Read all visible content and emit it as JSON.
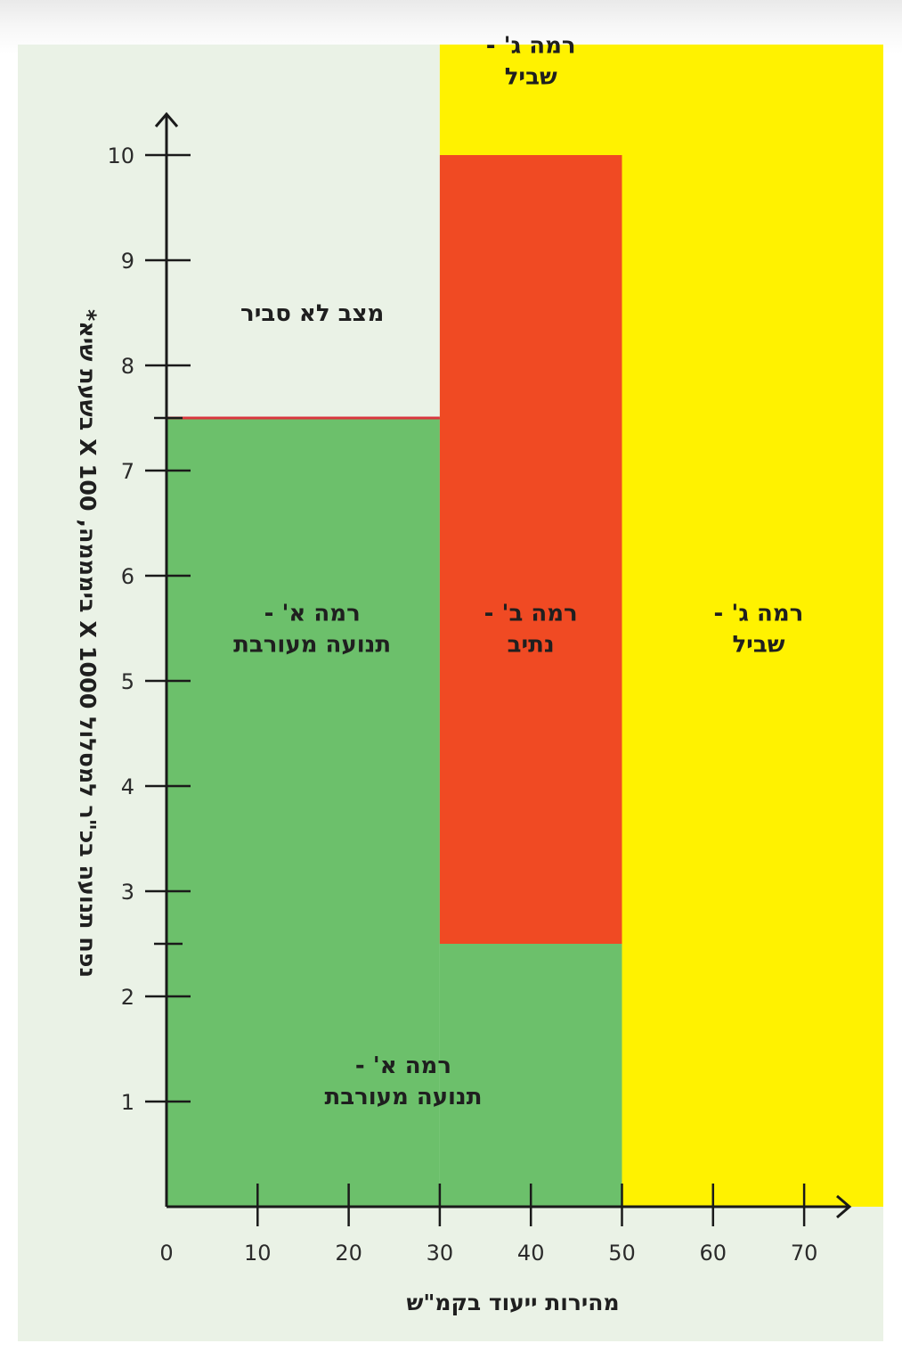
{
  "chart_data": {
    "type": "area",
    "xlabel": "מהירות ייעוד בקמ\"ש",
    "ylabel": "נפח תנועה בכ\"ר למסלול X 1000 בימממה, X 100 בשעת שיא*",
    "x_ticks": [
      0,
      10,
      20,
      30,
      40,
      50,
      60,
      70
    ],
    "y_ticks": [
      1,
      2,
      3,
      4,
      5,
      6,
      7,
      8,
      9,
      10
    ],
    "x_minor_extra_ticks": [],
    "y_extra_ticks": [
      2.5,
      7.5
    ],
    "xlim": [
      0,
      75
    ],
    "ylim": [
      0,
      10.5
    ],
    "zones": [
      {
        "name": "green-left",
        "color": "#6cc06b",
        "x": [
          0,
          30
        ],
        "y": [
          0,
          7.5
        ]
      },
      {
        "name": "green-bottom",
        "color": "#6cc06b",
        "x": [
          30,
          50
        ],
        "y": [
          0,
          2.5
        ]
      },
      {
        "name": "red",
        "color": "#f04a23",
        "x": [
          30,
          50
        ],
        "y": [
          2.5,
          10
        ]
      },
      {
        "name": "yellow-right",
        "color": "#fff200",
        "x": [
          50,
          79
        ],
        "y": [
          0,
          11.7
        ]
      },
      {
        "name": "yellow-top",
        "color": "#fff200",
        "x": [
          30,
          50
        ],
        "y": [
          10,
          11.7
        ]
      }
    ],
    "boundary_line": {
      "color": "#d9363e",
      "x": [
        0,
        30
      ],
      "y": 7.5
    },
    "labels": [
      {
        "lines": [
          "מצב לא סביר"
        ],
        "x": 16,
        "y": 8.5
      },
      {
        "lines": [
          "רמה א' -",
          "תנועה מעורבת"
        ],
        "x": 16,
        "y": 5.5
      },
      {
        "lines": [
          "רמה ב' -",
          "נתיב"
        ],
        "x": 40,
        "y": 5.5
      },
      {
        "lines": [
          "רמה ג' -",
          "שביל"
        ],
        "x": 65,
        "y": 5.5
      },
      {
        "lines": [
          "רמה א' -",
          "תנועה מעורבת"
        ],
        "x": 26,
        "y": 1.2
      },
      {
        "lines": [
          "רמה ג' -",
          "שביל"
        ],
        "x": 40,
        "y": 10.9
      }
    ]
  }
}
